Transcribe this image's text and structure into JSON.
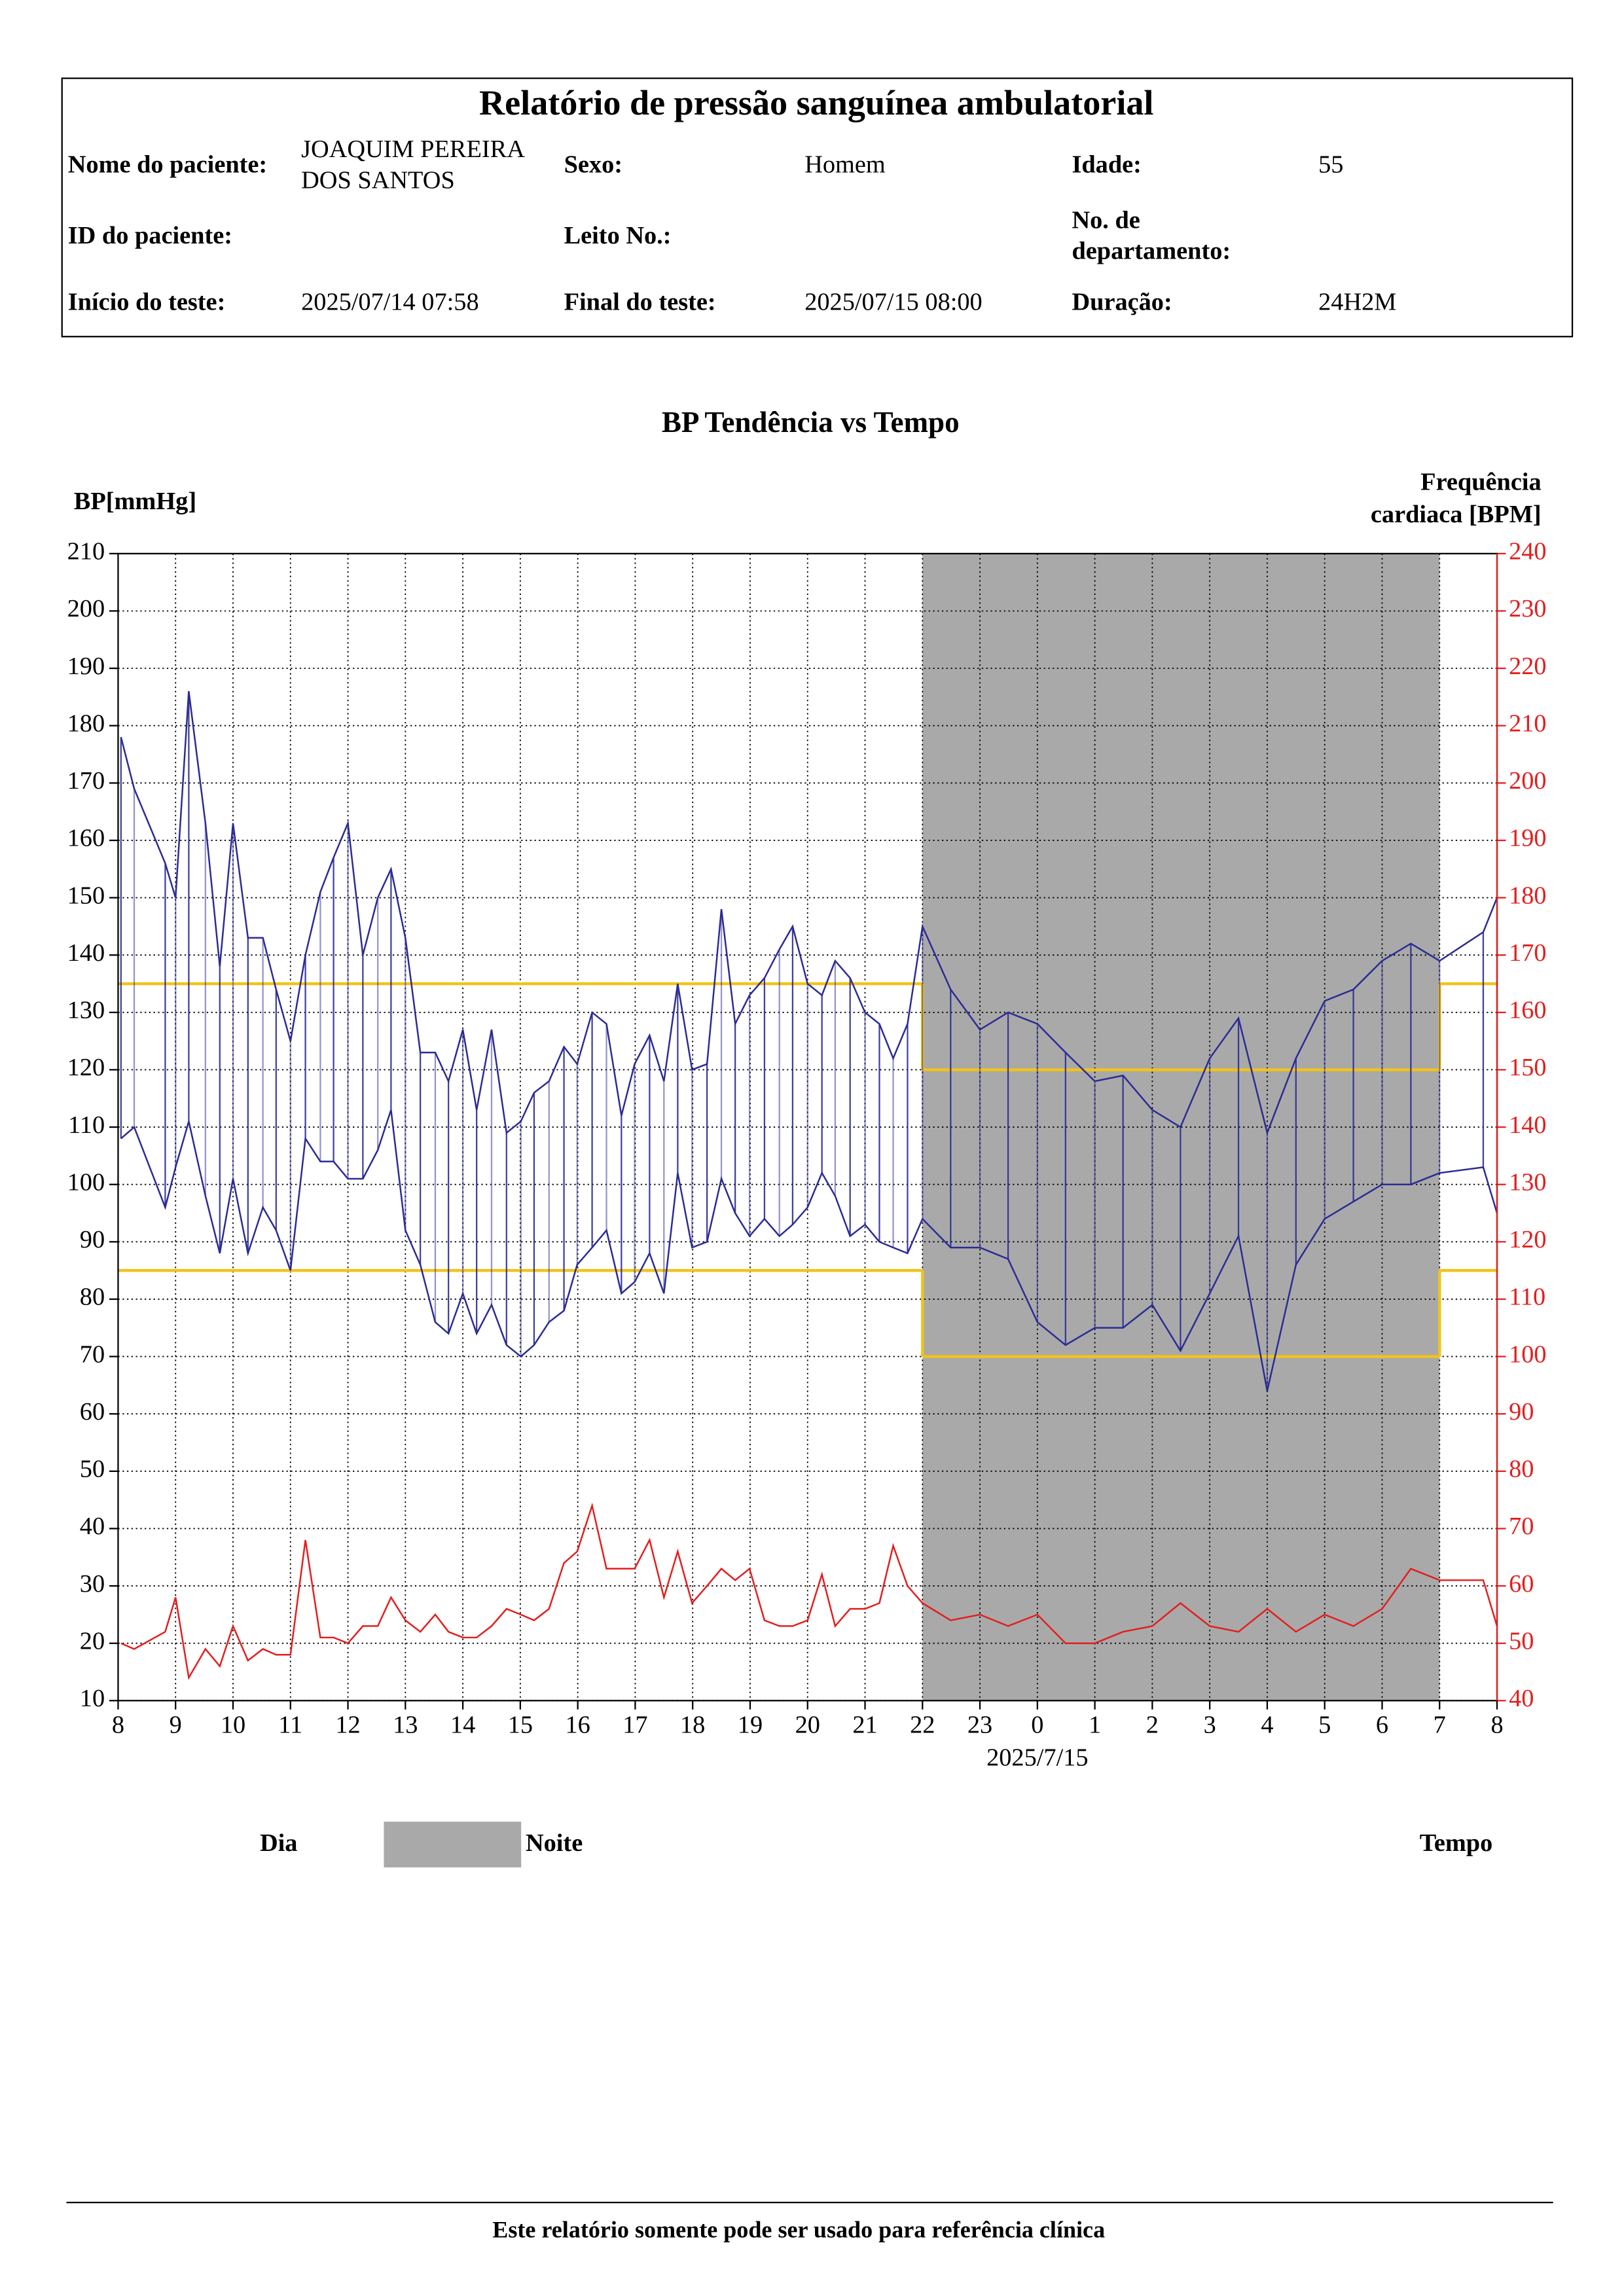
{
  "header": {
    "title": "Relatório de pressão sanguínea ambulatorial",
    "rows": [
      [
        {
          "label": [
            "Nome do paciente:"
          ],
          "value": [
            "JOAQUIM PEREIRA",
            "DOS SANTOS"
          ]
        },
        {
          "label": [
            "Sexo:"
          ],
          "value": [
            "Homem"
          ]
        },
        {
          "label": [
            "Idade:"
          ],
          "value": [
            "55"
          ]
        }
      ],
      [
        {
          "label": [
            "ID do paciente:"
          ]
        },
        {
          "label": [
            "Leito No.:"
          ]
        },
        {
          "label": [
            "No. de",
            "departamento:"
          ]
        }
      ],
      [
        {
          "label": [
            "Início do teste:"
          ],
          "value": [
            "2025/07/14 07:58"
          ]
        },
        {
          "label": [
            "Final do teste:"
          ],
          "value": [
            "2025/07/15 08:00"
          ]
        },
        {
          "label": [
            "Duração:"
          ],
          "value": [
            "24H2M"
          ]
        }
      ]
    ]
  },
  "chart_data": {
    "type": "line",
    "title": "BP Tendência vs Tempo",
    "y_label": [
      "BP[mmHg]"
    ],
    "y2_label": [
      "Frequência",
      "cardiaca [BPM]"
    ],
    "x_label": "Tempo",
    "x": [
      8.05,
      8.28,
      8.82,
      9.0,
      9.23,
      9.52,
      9.77,
      10.0,
      10.26,
      10.52,
      10.75,
      11.0,
      11.26,
      11.52,
      11.75,
      12.0,
      12.26,
      12.52,
      12.75,
      13.0,
      13.26,
      13.52,
      13.75,
      14.0,
      14.24,
      14.5,
      14.76,
      15.01,
      15.24,
      15.5,
      15.76,
      15.99,
      16.25,
      16.5,
      16.76,
      16.99,
      17.25,
      17.5,
      17.74,
      17.99,
      18.25,
      18.5,
      18.74,
      18.99,
      19.25,
      19.51,
      19.74,
      20.0,
      20.25,
      20.48,
      20.74,
      21.0,
      21.25,
      21.49,
      21.74,
      22.0,
      22.49,
      23.0,
      23.49,
      24.0,
      24.49,
      25.0,
      25.49,
      26.0,
      26.49,
      27.0,
      27.5,
      28.0,
      28.5,
      29.0,
      29.5,
      30.0,
      30.5,
      31.0,
      31.76,
      32.0
    ],
    "series": [
      {
        "color": "#2b2b94",
        "values": [
          178,
          169,
          156,
          150,
          186,
          163,
          138,
          163,
          143,
          143,
          134,
          125,
          140,
          151,
          157,
          163,
          140,
          150,
          155,
          143,
          123,
          123,
          118,
          127,
          113,
          127,
          109,
          111,
          116,
          118,
          124,
          121,
          130,
          128,
          112,
          121,
          126,
          118,
          135,
          120,
          121,
          148,
          128,
          133,
          136,
          141,
          145,
          135,
          133,
          139,
          136,
          130,
          128,
          122,
          128,
          145,
          134,
          127,
          130,
          128,
          123,
          118,
          119,
          113,
          110,
          122,
          129,
          109,
          122,
          132,
          134,
          139,
          142,
          139,
          144,
          150
        ]
      },
      {
        "color": "#2b2b94",
        "values": [
          108,
          110,
          96,
          103,
          111,
          98,
          88,
          101,
          88,
          96,
          92,
          85,
          108,
          104,
          104,
          101,
          101,
          106,
          113,
          92,
          86,
          76,
          74,
          81,
          74,
          79,
          72,
          70,
          72,
          76,
          78,
          86,
          89,
          92,
          81,
          83,
          88,
          81,
          102,
          89,
          90,
          101,
          95,
          91,
          94,
          91,
          93,
          96,
          102,
          98,
          91,
          93,
          90,
          89,
          88,
          94,
          89,
          89,
          87,
          76,
          72,
          75,
          75,
          79,
          71,
          81,
          91,
          64,
          86,
          94,
          97,
          100,
          100,
          102,
          103,
          95
        ]
      },
      {
        "color": "#e31e1e",
        "axis": "y2",
        "values": [
          50,
          49,
          52,
          58,
          44,
          49,
          46,
          53,
          47,
          49,
          48,
          48,
          68,
          51,
          51,
          50,
          53,
          53,
          58,
          54,
          52,
          55,
          52,
          51,
          51,
          53,
          56,
          55,
          54,
          56,
          64,
          66,
          74,
          63,
          63,
          63,
          68,
          58,
          66,
          57,
          60,
          63,
          61,
          63,
          54,
          53,
          53,
          54,
          62,
          53,
          56,
          56,
          57,
          67,
          60,
          57,
          54,
          55,
          53,
          55,
          50,
          50,
          52,
          53,
          57,
          53,
          52,
          56,
          52,
          55,
          53,
          56,
          63,
          61,
          61,
          53
        ]
      }
    ],
    "range_bars": true,
    "xlim": [
      8,
      32
    ],
    "xticks": [
      8,
      9,
      10,
      11,
      12,
      13,
      14,
      15,
      16,
      17,
      18,
      19,
      20,
      21,
      22,
      23,
      {
        "value": 24,
        "label": "0"
      },
      {
        "value": 25,
        "label": "1"
      },
      {
        "value": 26,
        "label": "2"
      },
      {
        "value": 27,
        "label": "3"
      },
      {
        "value": 28,
        "label": "4"
      },
      {
        "value": 29,
        "label": "5"
      },
      {
        "value": 30,
        "label": "6"
      },
      {
        "value": 31,
        "label": "7"
      },
      {
        "value": 32,
        "label": "8"
      }
    ],
    "ylim": [
      10,
      210
    ],
    "yticks": [
      10,
      20,
      30,
      40,
      50,
      60,
      70,
      80,
      90,
      100,
      110,
      120,
      130,
      140,
      150,
      160,
      170,
      180,
      190,
      200,
      210
    ],
    "y2lim": [
      40,
      240
    ],
    "y2ticks": [
      40,
      50,
      60,
      70,
      80,
      90,
      100,
      110,
      120,
      130,
      140,
      150,
      160,
      170,
      180,
      190,
      200,
      210,
      220,
      230,
      240
    ],
    "y2_color": "#e31e1e",
    "grid": true,
    "night": [
      22,
      31
    ],
    "night_color": "#a9a9a9",
    "limits": [
      {
        "x": [
          8,
          22
        ],
        "systolic": 135,
        "diastolic": 85
      },
      {
        "x": [
          22,
          31
        ],
        "systolic": 120,
        "diastolic": 70
      },
      {
        "x": [
          31,
          32
        ],
        "systolic": 135,
        "diastolic": 85
      }
    ],
    "limit_color": "#f2c31a",
    "annotations": [
      {
        "x": 24,
        "text": "2025/7/15"
      }
    ],
    "legend": [
      {
        "label": "Dia",
        "color": "#ffffff"
      },
      {
        "label": "Noite",
        "color": "#a9a9a9"
      }
    ]
  },
  "footer": "Este relatório somente pode ser usado para referência clínica"
}
